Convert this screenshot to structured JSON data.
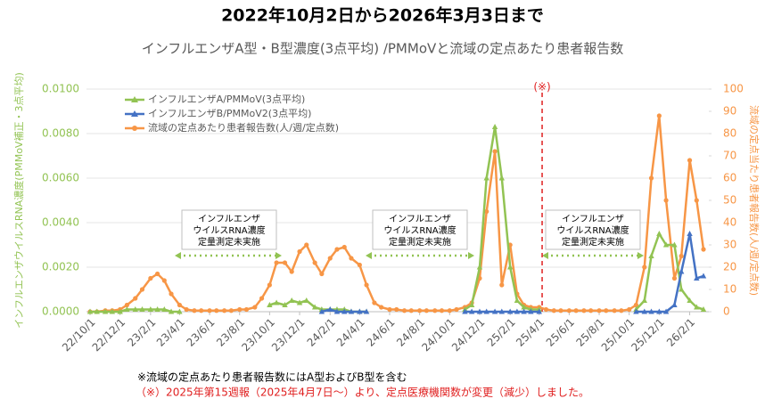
{
  "chart_data": {
    "type": "line",
    "title": "2022年10月2日から2026年3月3日まで",
    "subtitle": "インフルエンザA型・B型濃度(3点平均) /PMMoVと流域の定点あたり患者報告数",
    "y_label": "インフルエンザウイルスRNA濃度(PMMoV補正・3点平均)",
    "y2_label": "流域の定点当たり患者報告数(人/週/定点数)",
    "notes": [
      "※流域の定点あたり患者報告数にはA型およびB型を含む",
      "（※）2025年第15週報（2025年4月7日～）より、定点医療機関数が変更（減少）しました。"
    ],
    "annotations": [
      {
        "lines": [
          "インフルエンザ",
          "ウイルスRNA濃度",
          "定量測定未実施"
        ]
      },
      {
        "lines": [
          "インフルエンザ",
          "ウイルスRNA濃度",
          "定量測定未実施"
        ]
      },
      {
        "lines": [
          "インフルエンザ",
          "ウイルスRNA濃度",
          "定量測定未実施"
        ]
      }
    ],
    "reference_line": {
      "x": "25/4/7",
      "label": "(※)",
      "color": "#e02020"
    },
    "grid": true,
    "ylim": [
      0,
      0.01
    ],
    "yticks": [
      {
        "value": 0,
        "label": "0.0000"
      },
      {
        "value": 0.002,
        "label": "0.0020"
      },
      {
        "value": 0.004,
        "label": "0.0040"
      },
      {
        "value": 0.006,
        "label": "0.0060"
      },
      {
        "value": 0.008,
        "label": "0.0080"
      },
      {
        "value": 0.01,
        "label": "0.0100"
      }
    ],
    "y2lim": [
      0,
      100
    ],
    "y2ticks": [
      0,
      10,
      20,
      30,
      40,
      50,
      60,
      70,
      80,
      90,
      100
    ],
    "xticks": [
      "22/10/1",
      "22/12/1",
      "23/2/1",
      "23/4/1",
      "23/6/1",
      "23/8/1",
      "23/10/1",
      "23/12/1",
      "24/2/1",
      "24/4/1",
      "24/6/1",
      "24/8/1",
      "24/10/1",
      "24/12/1",
      "25/2/1",
      "25/4/1",
      "25/6/1",
      "25/8/1",
      "25/10/1",
      "25/12/1",
      "26/2/1"
    ],
    "x": [
      "22/10/1",
      "22/10/15",
      "22/11/1",
      "22/11/15",
      "22/12/1",
      "22/12/15",
      "23/1/1",
      "23/1/15",
      "23/2/1",
      "23/2/15",
      "23/3/1",
      "23/3/15",
      "23/4/1",
      "23/4/15",
      "23/5/1",
      "23/5/15",
      "23/6/1",
      "23/6/15",
      "23/7/1",
      "23/7/15",
      "23/8/1",
      "23/8/15",
      "23/9/1",
      "23/9/15",
      "23/10/1",
      "23/10/15",
      "23/11/1",
      "23/11/15",
      "23/12/1",
      "23/12/15",
      "24/1/1",
      "24/1/15",
      "24/2/1",
      "24/2/15",
      "24/3/1",
      "24/3/15",
      "24/4/1",
      "24/4/15",
      "24/5/1",
      "24/5/15",
      "24/6/1",
      "24/6/15",
      "24/7/1",
      "24/7/15",
      "24/8/1",
      "24/8/15",
      "24/9/1",
      "24/9/15",
      "24/10/1",
      "24/10/15",
      "24/11/1",
      "24/11/15",
      "24/12/1",
      "24/12/15",
      "25/1/1",
      "25/1/15",
      "25/2/1",
      "25/2/15",
      "25/3/1",
      "25/3/15",
      "25/4/1",
      "25/4/15",
      "25/5/1",
      "25/5/15",
      "25/6/1",
      "25/6/15",
      "25/7/1",
      "25/7/15",
      "25/8/1",
      "25/8/15",
      "25/9/1",
      "25/9/15",
      "25/10/1",
      "25/10/15",
      "25/11/1",
      "25/11/15",
      "25/12/1",
      "25/12/15",
      "26/1/1",
      "26/1/15",
      "26/2/1",
      "26/2/15",
      "26/3/1"
    ],
    "series": [
      {
        "name": "流域の定点あたり患者報告数(人/週/定点数)",
        "color": "#f79646",
        "marker": "circle",
        "axis": "y2",
        "values": [
          0,
          0,
          0.5,
          0.5,
          1,
          3,
          6,
          10,
          15,
          17,
          14,
          8,
          3,
          1,
          0.5,
          0.5,
          0.5,
          0.5,
          0.5,
          0.5,
          1,
          1,
          2,
          6,
          12,
          22,
          22,
          18,
          27,
          30,
          22,
          17,
          24,
          28,
          29,
          24,
          21,
          12,
          4,
          2,
          1,
          1,
          0.5,
          0.5,
          0.5,
          0.5,
          0.5,
          0.5,
          0.5,
          1,
          2,
          4,
          15,
          45,
          72,
          12,
          30,
          8,
          3,
          2,
          2,
          1,
          0.5,
          0.5,
          0.5,
          0.5,
          0.5,
          0.5,
          0.5,
          0.5,
          0.5,
          0.5,
          1,
          3,
          20,
          60,
          88,
          50,
          15,
          25,
          68,
          50,
          28
        ]
      },
      {
        "name": "インフルエンザA/PMMoV(3点平均)",
        "color": "#92c353",
        "marker": "triangle",
        "axis": "y",
        "values": [
          0,
          0,
          0,
          0,
          0,
          0.0001,
          0.0001,
          0.0001,
          0.0001,
          0.0001,
          0.0001,
          0,
          0,
          null,
          null,
          null,
          null,
          null,
          null,
          null,
          null,
          null,
          null,
          null,
          0.0003,
          0.0004,
          0.0003,
          0.0005,
          0.0004,
          0.0005,
          0.0002,
          0.0001,
          0.0001,
          0.0001,
          0.0001,
          0,
          0,
          0,
          null,
          null,
          null,
          null,
          null,
          null,
          null,
          null,
          null,
          null,
          null,
          null,
          0.0001,
          0.0003,
          0.002,
          0.006,
          0.0083,
          0.006,
          0.002,
          0.0005,
          0.0002,
          0.0001,
          0.0001,
          null,
          null,
          null,
          null,
          null,
          null,
          null,
          null,
          null,
          null,
          null,
          null,
          0.0001,
          0.0005,
          0.0025,
          0.0035,
          0.003,
          0.003,
          0.001,
          0.0005,
          0.0002,
          0.0001
        ]
      },
      {
        "name": "インフルエンザB/PMMoV2(3点平均)",
        "color": "#4472c4",
        "marker": "triangle",
        "axis": "y",
        "values": [
          null,
          null,
          null,
          null,
          null,
          null,
          null,
          null,
          null,
          null,
          null,
          null,
          null,
          null,
          null,
          null,
          null,
          null,
          null,
          null,
          null,
          null,
          null,
          null,
          null,
          null,
          null,
          null,
          null,
          null,
          null,
          0,
          0.0001,
          0,
          0,
          0,
          0,
          0,
          null,
          null,
          null,
          null,
          null,
          null,
          null,
          null,
          null,
          null,
          null,
          null,
          0,
          0,
          0,
          0,
          0,
          0,
          0,
          0,
          0,
          0,
          0,
          null,
          null,
          null,
          null,
          null,
          null,
          null,
          null,
          null,
          null,
          null,
          null,
          0,
          0,
          0,
          0,
          0,
          0.0003,
          0.0018,
          0.0035,
          0.0015,
          0.0016
        ]
      }
    ],
    "legend_order": [
      1,
      2,
      0
    ]
  }
}
